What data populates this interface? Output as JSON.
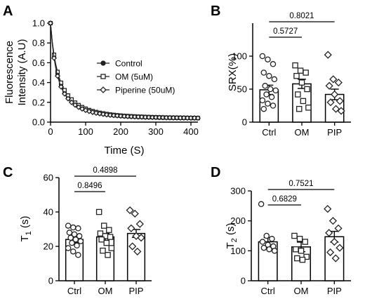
{
  "figure": {
    "panel_labels": [
      "A",
      "B",
      "C",
      "D"
    ],
    "pvalue_labels": {
      "B": [
        "0.8021",
        "0.5727"
      ],
      "C": [
        "0.4898",
        "0.8496"
      ],
      "D": [
        "0.7521",
        "0.6829"
      ]
    }
  },
  "chart_data": [
    {
      "panel": "A",
      "type": "line",
      "xlabel": "Time (S)",
      "ylabel": "Fluorescence Intensity (A.U)",
      "ylabel_lines": [
        "Fluorescence",
        "Intensity (A.U)"
      ],
      "xlim": [
        0,
        420
      ],
      "ylim": [
        0,
        1.0
      ],
      "xticks": [
        "0",
        "100",
        "200",
        "300",
        "400"
      ],
      "yticks": [
        "0.0",
        "0.2",
        "0.4",
        "0.6",
        "0.8",
        "1.0"
      ],
      "legend_position": "upper-right",
      "x": [
        0,
        5,
        10,
        15,
        20,
        25,
        30,
        35,
        40,
        45,
        50,
        55,
        60,
        65,
        70,
        75,
        80,
        85,
        90,
        95,
        100,
        105,
        110,
        115,
        120,
        125,
        130,
        135,
        140,
        145,
        150,
        155,
        160,
        165,
        170,
        175,
        180,
        185,
        190,
        195,
        200,
        205,
        210,
        215,
        220,
        225,
        230,
        235,
        240,
        245,
        250,
        255,
        260,
        265,
        270,
        275,
        280,
        285,
        290,
        295,
        300,
        305,
        310,
        315,
        320,
        325,
        330,
        335,
        340,
        345,
        350,
        355,
        360,
        365,
        370,
        375,
        380,
        385,
        390,
        395,
        400,
        405,
        410,
        415,
        420
      ],
      "series": [
        {
          "name": "Control",
          "marker": "circle",
          "values": [
            1.0,
            0.8,
            0.661,
            0.56,
            0.482,
            0.421,
            0.372,
            0.332,
            0.299,
            0.271,
            0.247,
            0.227,
            0.209,
            0.193,
            0.179,
            0.167,
            0.156,
            0.146,
            0.137,
            0.129,
            0.122,
            0.116,
            0.11,
            0.105,
            0.1,
            0.096,
            0.092,
            0.088,
            0.085,
            0.082,
            0.079,
            0.076,
            0.074,
            0.072,
            0.07,
            0.068,
            0.066,
            0.064,
            0.063,
            0.061,
            0.06,
            0.059,
            0.057,
            0.056,
            0.055,
            0.054,
            0.053,
            0.053,
            0.052,
            0.051,
            0.05,
            0.05,
            0.049,
            0.048,
            0.048,
            0.047,
            0.047,
            0.046,
            0.046,
            0.045,
            0.045,
            0.044,
            0.044,
            0.044,
            0.043,
            0.043,
            0.043,
            0.042,
            0.042,
            0.042,
            0.041,
            0.041,
            0.041,
            0.041,
            0.04,
            0.04,
            0.04,
            0.04,
            0.04,
            0.039,
            0.039,
            0.039,
            0.039,
            0.039,
            0.039
          ]
        },
        {
          "name": "OM (5uM)",
          "marker": "square",
          "values": [
            1.0,
            0.813,
            0.681,
            0.584,
            0.508,
            0.447,
            0.398,
            0.357,
            0.323,
            0.294,
            0.269,
            0.248,
            0.229,
            0.212,
            0.197,
            0.184,
            0.172,
            0.161,
            0.152,
            0.143,
            0.136,
            0.129,
            0.122,
            0.116,
            0.111,
            0.106,
            0.102,
            0.098,
            0.094,
            0.091,
            0.088,
            0.085,
            0.082,
            0.079,
            0.077,
            0.075,
            0.073,
            0.071,
            0.069,
            0.068,
            0.066,
            0.065,
            0.063,
            0.062,
            0.061,
            0.06,
            0.059,
            0.058,
            0.057,
            0.056,
            0.055,
            0.054,
            0.054,
            0.053,
            0.052,
            0.052,
            0.051,
            0.05,
            0.05,
            0.049,
            0.049,
            0.048,
            0.048,
            0.047,
            0.047,
            0.047,
            0.046,
            0.046,
            0.045,
            0.045,
            0.045,
            0.044,
            0.044,
            0.044,
            0.044,
            0.043,
            0.043,
            0.043,
            0.043,
            0.042,
            0.042,
            0.042,
            0.042,
            0.042,
            0.041
          ]
        },
        {
          "name": "Piperine (50uM)",
          "marker": "diamond",
          "values": [
            1.0,
            0.79,
            0.647,
            0.544,
            0.466,
            0.405,
            0.357,
            0.318,
            0.286,
            0.259,
            0.237,
            0.217,
            0.2,
            0.186,
            0.173,
            0.161,
            0.151,
            0.142,
            0.134,
            0.127,
            0.12,
            0.114,
            0.109,
            0.104,
            0.1,
            0.096,
            0.092,
            0.089,
            0.086,
            0.083,
            0.08,
            0.078,
            0.075,
            0.073,
            0.071,
            0.069,
            0.068,
            0.066,
            0.065,
            0.063,
            0.062,
            0.061,
            0.06,
            0.059,
            0.058,
            0.057,
            0.056,
            0.055,
            0.054,
            0.054,
            0.053,
            0.052,
            0.052,
            0.051,
            0.05,
            0.05,
            0.049,
            0.049,
            0.048,
            0.048,
            0.048,
            0.047,
            0.047,
            0.046,
            0.046,
            0.046,
            0.045,
            0.045,
            0.045,
            0.044,
            0.044,
            0.044,
            0.044,
            0.043,
            0.043,
            0.043,
            0.043,
            0.043,
            0.042,
            0.042,
            0.042,
            0.042,
            0.042,
            0.041,
            0.041
          ]
        }
      ]
    },
    {
      "panel": "B",
      "type": "bar",
      "ylabel": "SRX(%)",
      "ylim": [
        0,
        150
      ],
      "yticks": [
        "0",
        "50",
        "100"
      ],
      "categories": [
        "Ctrl",
        "OM",
        "PIP"
      ],
      "values": [
        49,
        58,
        42
      ],
      "errors": [
        7,
        7,
        8
      ],
      "points": [
        {
          "marker": "circle",
          "values": [
            100,
            95,
            88,
            75,
            70,
            65,
            55,
            50,
            48,
            42,
            38,
            33,
            28,
            25,
            20
          ]
        },
        {
          "marker": "square",
          "values": [
            86,
            78,
            75,
            70,
            60,
            50,
            42,
            32,
            22,
            20
          ]
        },
        {
          "marker": "diamond",
          "values": [
            102,
            65,
            60,
            55,
            42,
            32,
            30,
            20,
            17
          ]
        }
      ],
      "comparisons": [
        {
          "from": "Ctrl",
          "to": "PIP",
          "label": "0.8021"
        },
        {
          "from": "Ctrl",
          "to": "OM",
          "label": "0.5727"
        }
      ]
    },
    {
      "panel": "C",
      "type": "bar",
      "ylabel": "T1 (s)",
      "ylim": [
        0,
        60
      ],
      "yticks": [
        "0",
        "20",
        "40",
        "60"
      ],
      "categories": [
        "Ctrl",
        "OM",
        "PIP"
      ],
      "values": [
        24,
        25.5,
        27.5
      ],
      "errors": [
        1.8,
        2,
        2.3
      ],
      "points": [
        {
          "marker": "circle",
          "values": [
            32,
            31,
            30.5,
            28,
            27,
            26,
            25,
            24,
            23,
            22,
            20.5,
            19,
            17,
            15
          ]
        },
        {
          "marker": "square",
          "values": [
            40,
            32,
            29.5,
            27.5,
            26,
            25.5,
            24,
            22,
            19,
            17.5,
            15
          ]
        },
        {
          "marker": "diamond",
          "values": [
            41,
            39,
            33,
            30.5,
            26,
            25,
            20,
            17
          ]
        }
      ],
      "comparisons": [
        {
          "from": "Ctrl",
          "to": "PIP",
          "label": "0.4898"
        },
        {
          "from": "Ctrl",
          "to": "OM",
          "label": "0.8496"
        }
      ]
    },
    {
      "panel": "D",
      "type": "bar",
      "ylabel": "T2 (s)",
      "ylim": [
        0,
        300
      ],
      "yticks": [
        "0",
        "100",
        "200",
        "300"
      ],
      "categories": [
        "Ctrl",
        "OM",
        "PIP"
      ],
      "values": [
        130,
        113,
        147
      ],
      "errors": [
        14,
        16,
        18
      ],
      "points": [
        {
          "marker": "circle",
          "values": [
            256,
            150,
            140,
            130,
            120,
            115,
            110,
            105,
            100
          ]
        },
        {
          "marker": "square",
          "values": [
            150,
            140,
            130,
            105,
            100,
            80,
            75,
            70
          ]
        },
        {
          "marker": "diamond",
          "values": [
            240,
            200,
            175,
            160,
            130,
            110,
            95,
            75
          ]
        }
      ],
      "comparisons": [
        {
          "from": "Ctrl",
          "to": "PIP",
          "label": "0.7521"
        },
        {
          "from": "Ctrl",
          "to": "OM",
          "label": "0.6829"
        }
      ]
    }
  ]
}
